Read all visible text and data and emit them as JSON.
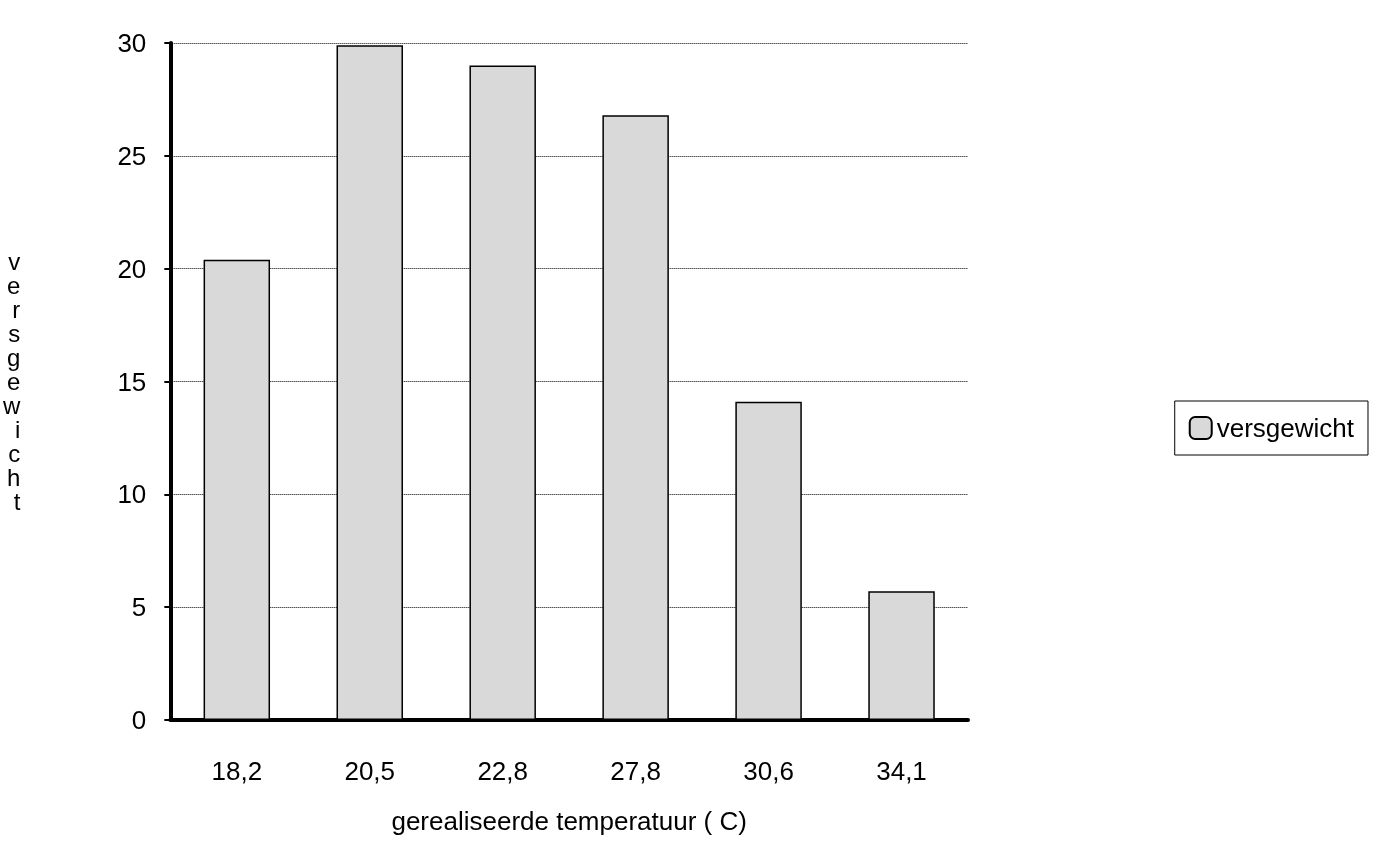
{
  "chart_data": {
    "type": "bar",
    "xlabel": "gerealiseerde temperatuur ( C)",
    "ylabel": "versgewicht",
    "categories": [
      "18,2",
      "20,5",
      "22,8",
      "27,8",
      "30,6",
      "34,1"
    ],
    "series": [
      {
        "name": "versgewicht",
        "color": "#d9d9d9",
        "values": [
          20.4,
          29.9,
          29.0,
          26.8,
          14.1,
          5.7
        ]
      }
    ],
    "ylim": [
      0,
      30
    ],
    "yticks": [
      0,
      5,
      10,
      15,
      20,
      25,
      30
    ],
    "grid": "y",
    "legend": "right"
  }
}
